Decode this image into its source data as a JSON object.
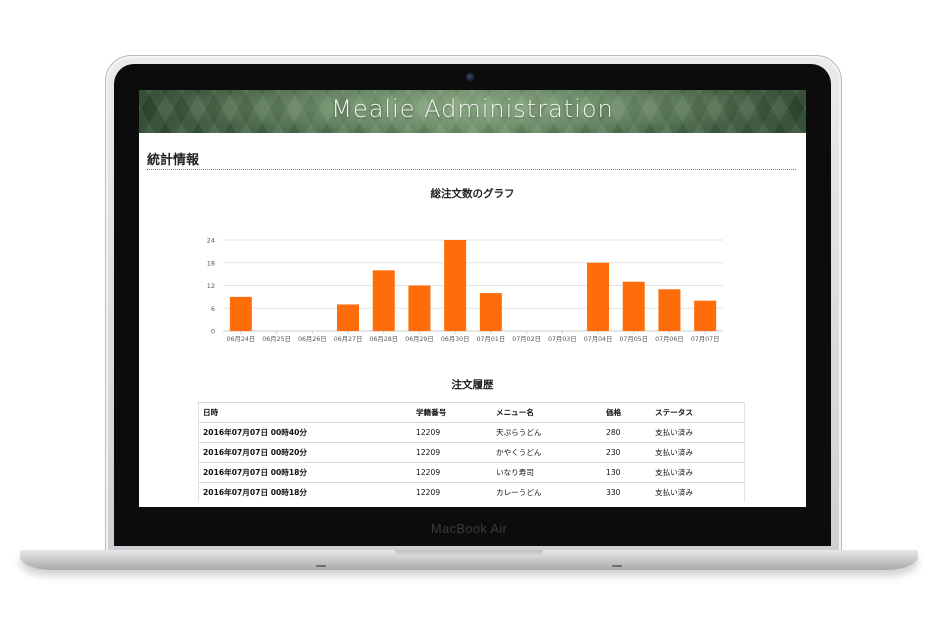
{
  "device": {
    "brand": "MacBook Air"
  },
  "app": {
    "title": "Mealie Administration"
  },
  "stats": {
    "section_title": "統計情報"
  },
  "chart_data": {
    "type": "bar",
    "title": "総注文数のグラフ",
    "categories": [
      "06月24日",
      "06月25日",
      "06月26日",
      "06月27日",
      "06月28日",
      "06月29日",
      "06月30日",
      "07月01日",
      "07月02日",
      "07月03日",
      "07月04日",
      "07月05日",
      "07月06日",
      "07月07日"
    ],
    "values": [
      9,
      0,
      0,
      7,
      16,
      12,
      24,
      10,
      0,
      0,
      18,
      13,
      11,
      8
    ],
    "yticks": [
      0,
      6,
      12,
      18,
      24
    ],
    "ylim": [
      0,
      24
    ],
    "bar_color": "#ff6d0a",
    "grid": true
  },
  "orders": {
    "title": "注文履歴",
    "headers": [
      "日時",
      "学籍番号",
      "メニュー名",
      "価格",
      "ステータス"
    ],
    "rows": [
      [
        "2016年07月07日 00時40分",
        "12209",
        "天ぷらうどん",
        "280",
        "支払い済み"
      ],
      [
        "2016年07月07日 00時20分",
        "12209",
        "かやくうどん",
        "230",
        "支払い済み"
      ],
      [
        "2016年07月07日 00時18分",
        "12209",
        "いなり寿司",
        "130",
        "支払い済み"
      ],
      [
        "2016年07月07日 00時18分",
        "12209",
        "カレーうどん",
        "330",
        "支払い済み"
      ]
    ]
  }
}
